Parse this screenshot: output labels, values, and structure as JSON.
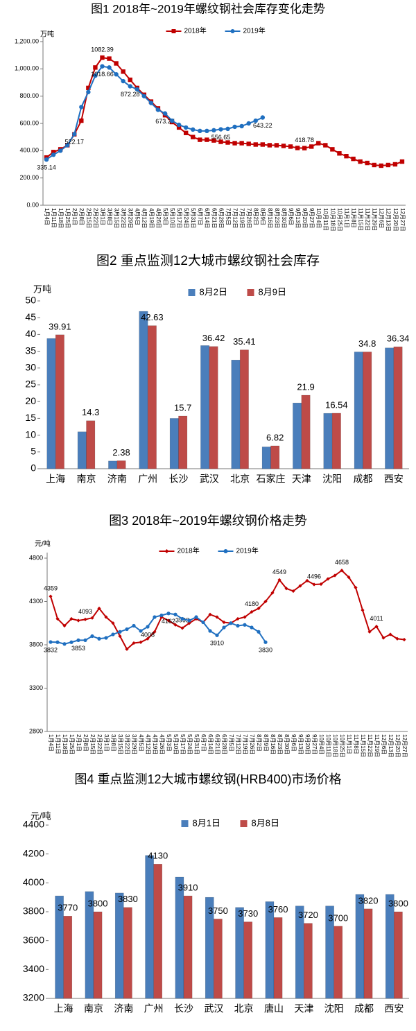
{
  "chart_data": [
    {
      "type": "line",
      "title": "图1 2018年~2019年螺纹钢社会库存变化走势",
      "y_unit": "万吨",
      "categories": [
        "1月4日",
        "1月11日",
        "1月18日",
        "1月25日",
        "2月1日",
        "2月8日",
        "2月15日",
        "2月22日",
        "3月1日",
        "3月8日",
        "3月15日",
        "3月22日",
        "3月29日",
        "4月5日",
        "4月12日",
        "4月19日",
        "4月26日",
        "5月3日",
        "5月10日",
        "5月17日",
        "5月24日",
        "5月31日",
        "6月7日",
        "6月14日",
        "6月21日",
        "6月28日",
        "7月5日",
        "7月12日",
        "7月19日",
        "7月26日",
        "8月2日",
        "8月9日",
        "8月16日",
        "8月23日",
        "8月30日",
        "9月6日",
        "9月13日",
        "9月20日",
        "9月27日",
        "10月4日",
        "10月11日",
        "10月18日",
        "10月25日",
        "11月1日",
        "11月8日",
        "11月15日",
        "11月22日",
        "11月29日",
        "12月6日",
        "12月13日",
        "12月20日",
        "12月27日"
      ],
      "series": [
        {
          "name": "2018年",
          "color": "#c00000",
          "marker": "square",
          "values": [
            350,
            390,
            410,
            440,
            520,
            620,
            860,
            1010,
            1082.39,
            1075,
            1040,
            980,
            920,
            860,
            810,
            760,
            710,
            660,
            610,
            570,
            530,
            500,
            480,
            480,
            475,
            465,
            460,
            455,
            455,
            450,
            445,
            445,
            440,
            440,
            435,
            430,
            420,
            418.78,
            430,
            455,
            440,
            410,
            380,
            360,
            340,
            320,
            310,
            295,
            290,
            295,
            300,
            320
          ],
          "value_labels": [
            null,
            null,
            null,
            null,
            null,
            null,
            null,
            null,
            "1082.39",
            null,
            null,
            null,
            null,
            null,
            null,
            null,
            null,
            null,
            null,
            null,
            null,
            null,
            null,
            null,
            null,
            null,
            null,
            null,
            null,
            null,
            null,
            null,
            null,
            null,
            null,
            null,
            null,
            "418.78",
            null,
            null,
            null,
            null,
            null,
            null,
            null,
            null,
            null,
            null,
            null,
            null,
            null,
            null
          ]
        },
        {
          "name": "2019年",
          "color": "#1f6fc0",
          "marker": "circle",
          "values": [
            335.14,
            370,
            400,
            440,
            522.17,
            720,
            830,
            950,
            1018.66,
            1010,
            960,
            910,
            872.28,
            850,
            800,
            750,
            700,
            673.27,
            620,
            590,
            570,
            555,
            545,
            545,
            550,
            556.65,
            560,
            575,
            580,
            600,
            620,
            643.22,
            null,
            null,
            null,
            null,
            null,
            null,
            null,
            null,
            null,
            null,
            null,
            null,
            null,
            null,
            null,
            null,
            null,
            null,
            null,
            null
          ],
          "value_labels": [
            "335.14",
            null,
            null,
            null,
            "522.17",
            null,
            null,
            null,
            "1018.66",
            null,
            null,
            null,
            "872.28",
            null,
            null,
            null,
            null,
            "673.27",
            null,
            null,
            null,
            null,
            null,
            null,
            null,
            "556.65",
            null,
            null,
            null,
            null,
            null,
            "643.22",
            null,
            null,
            null,
            null,
            null,
            null,
            null,
            null,
            null,
            null,
            null,
            null,
            null,
            null,
            null,
            null,
            null,
            null,
            null,
            null
          ]
        }
      ],
      "ylim": [
        0,
        1200
      ],
      "yticks": [
        {
          "value": 0,
          "label": "0.00"
        },
        {
          "value": 200,
          "label": "200.00"
        },
        {
          "value": 400,
          "label": "400.00"
        },
        {
          "value": 600,
          "label": "600.00"
        },
        {
          "value": 800,
          "label": "800.00"
        },
        {
          "value": 1000,
          "label": "1,000.00"
        },
        {
          "value": 1200,
          "label": "1,200.00"
        }
      ]
    },
    {
      "type": "bar",
      "title": "图2 重点监测12大城市螺纹钢社会库存",
      "y_unit": "万吨",
      "categories": [
        "上海",
        "南京",
        "济南",
        "广州",
        "长沙",
        "武汉",
        "北京",
        "石家庄",
        "天津",
        "沈阳",
        "成都",
        "西安"
      ],
      "series": [
        {
          "name": "8月2日",
          "color": "#4a7ebb",
          "values": [
            38.8,
            11,
            2.3,
            46.9,
            15,
            36.7,
            32.4,
            6.5,
            19.6,
            16.5,
            34.8,
            36
          ],
          "data_labels": false
        },
        {
          "name": "8月9日",
          "color": "#be4b48",
          "values": [
            39.91,
            14.3,
            2.38,
            42.63,
            15.7,
            36.42,
            35.41,
            6.82,
            21.9,
            16.54,
            34.8,
            36.34
          ],
          "data_labels": true
        }
      ],
      "ylim": [
        0,
        50
      ],
      "yticks": [
        0,
        5,
        10,
        15,
        20,
        25,
        30,
        35,
        40,
        45,
        50
      ]
    },
    {
      "type": "line",
      "title": "图3 2018年~2019年螺纹钢价格走势",
      "y_unit": "元/吨",
      "categories": [
        "1月4日",
        "1月11日",
        "1月18日",
        "1月25日",
        "2月1日",
        "2月8日",
        "2月15日",
        "2月22日",
        "3月1日",
        "3月8日",
        "3月15日",
        "3月22日",
        "3月29日",
        "4月5日",
        "4月12日",
        "4月19日",
        "4月26日",
        "5月3日",
        "5月10日",
        "5月17日",
        "5月24日",
        "5月31日",
        "6月7日",
        "6月14日",
        "6月21日",
        "6月28日",
        "7月5日",
        "7月12日",
        "7月19日",
        "7月26日",
        "8月2日",
        "8月9日",
        "8月16日",
        "8月23日",
        "8月30日",
        "9月6日",
        "9月13日",
        "9月20日",
        "9月27日",
        "10月4日",
        "10月11日",
        "10月18日",
        "10月25日",
        "11月1日",
        "11月8日",
        "11月15日",
        "11月22日",
        "11月29日",
        "12月6日",
        "12月13日",
        "12月20日",
        "12月27日"
      ],
      "series": [
        {
          "name": "2018年",
          "color": "#c00000",
          "marker": "diamond",
          "values": [
            4359,
            4100,
            4020,
            4100,
            4080,
            4093,
            4110,
            4220,
            4120,
            4050,
            3900,
            3750,
            3820,
            3830,
            3870,
            3950,
            4120,
            4080,
            4030,
            3993,
            4050,
            4100,
            4060,
            4150,
            4120,
            4060,
            4050,
            4100,
            4120,
            4180,
            4220,
            4300,
            4400,
            4549,
            4450,
            4420,
            4480,
            4540,
            4496,
            4500,
            4560,
            4600,
            4658,
            4580,
            4460,
            4200,
            3950,
            4011,
            3880,
            3920,
            3870,
            3860
          ],
          "value_labels": [
            "4359",
            null,
            null,
            null,
            null,
            "4093",
            null,
            null,
            null,
            null,
            null,
            null,
            null,
            null,
            null,
            null,
            null,
            null,
            null,
            "3993",
            null,
            null,
            null,
            null,
            null,
            null,
            null,
            null,
            null,
            "4180",
            null,
            null,
            null,
            "4549",
            null,
            null,
            null,
            null,
            "4496",
            null,
            null,
            null,
            "4658",
            null,
            null,
            null,
            null,
            "4011",
            null,
            null,
            null,
            null
          ]
        },
        {
          "name": "2019年",
          "color": "#1f6fc0",
          "marker": "circle",
          "values": [
            3832,
            3830,
            3810,
            3830,
            3853,
            3853,
            3900,
            3870,
            3880,
            3920,
            3950,
            3980,
            4020,
            3960,
            4008,
            4120,
            4140,
            4162,
            4150,
            4100,
            4080,
            4120,
            4060,
            3960,
            3910,
            4000,
            4050,
            4020,
            4030,
            4000,
            3950,
            3830,
            null,
            null,
            null,
            null,
            null,
            null,
            null,
            null,
            null,
            null,
            null,
            null,
            null,
            null,
            null,
            null,
            null,
            null,
            null,
            null
          ],
          "value_labels": [
            "3832",
            null,
            null,
            null,
            "3853",
            null,
            null,
            null,
            null,
            null,
            null,
            null,
            null,
            null,
            "4008",
            null,
            null,
            "4162",
            null,
            null,
            null,
            null,
            null,
            null,
            "3910",
            null,
            null,
            null,
            null,
            null,
            null,
            "3830",
            null,
            null,
            null,
            null,
            null,
            null,
            null,
            null,
            null,
            null,
            null,
            null,
            null,
            null,
            null,
            null,
            null,
            null,
            null,
            null
          ]
        }
      ],
      "ylim": [
        2800,
        4800
      ],
      "yticks": [
        2800,
        3300,
        3800,
        4300,
        4800
      ]
    },
    {
      "type": "bar",
      "title": "图4 重点监测12大城市螺纹钢(HRB400)市场价格",
      "y_unit": "元/吨",
      "categories": [
        "上海",
        "南京",
        "济南",
        "广州",
        "长沙",
        "武汉",
        "北京",
        "唐山",
        "天津",
        "沈阳",
        "成都",
        "西安"
      ],
      "series": [
        {
          "name": "8月1日",
          "color": "#4a7ebb",
          "values": [
            3910,
            3940,
            3930,
            4190,
            4040,
            3900,
            3830,
            3870,
            3840,
            3840,
            3920,
            3920
          ],
          "data_labels": false
        },
        {
          "name": "8月8日",
          "color": "#be4b48",
          "values": [
            3770,
            3800,
            3830,
            4130,
            3910,
            3750,
            3730,
            3760,
            3720,
            3700,
            3820,
            3800
          ],
          "data_labels": true
        }
      ],
      "ylim": [
        3200,
        4400
      ],
      "yticks": [
        3200,
        3400,
        3600,
        3800,
        4000,
        4200,
        4400
      ]
    }
  ]
}
